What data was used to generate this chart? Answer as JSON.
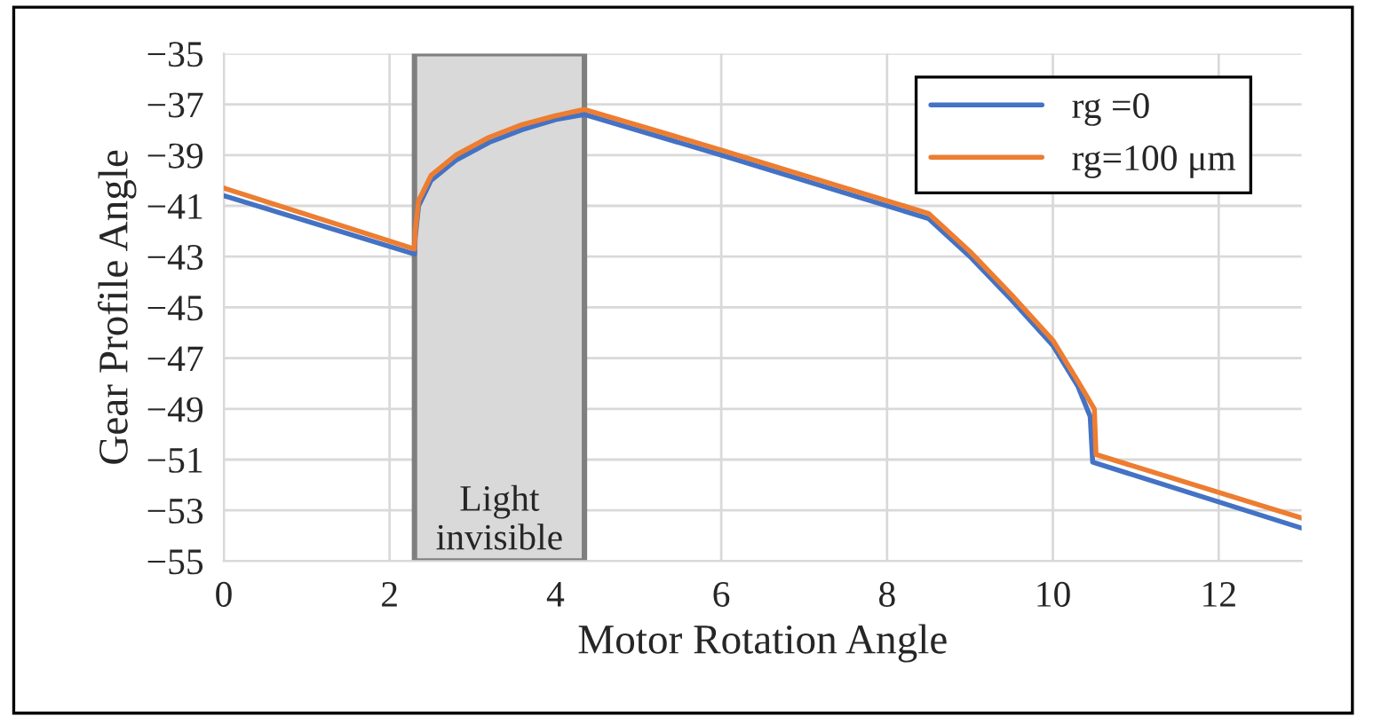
{
  "chart_data": {
    "type": "line",
    "xlabel": "Motor Rotation Angle",
    "ylabel": "Gear Profile Angle",
    "xlim": [
      0,
      13
    ],
    "xticks": [
      0,
      2,
      4,
      6,
      8,
      10,
      12
    ],
    "ylim": [
      -55,
      -35
    ],
    "yticks": [
      -35,
      -37,
      -39,
      -41,
      -43,
      -45,
      -47,
      -49,
      -51,
      -53,
      -55
    ],
    "grid": true,
    "legend": "top right",
    "marker": "none",
    "line_style": "solid",
    "bands": [
      {
        "axis": "x",
        "from": 2.3,
        "to": 4.35,
        "label": "Light\ninvisible",
        "color": "#d9d9d9"
      }
    ],
    "series": [
      {
        "name": "rg =0",
        "color": "#4472c4",
        "x": [
          0,
          2.3,
          2.31,
          2.35,
          2.5,
          2.8,
          3.2,
          3.6,
          4.0,
          4.35,
          6,
          8.5,
          9.0,
          9.5,
          10,
          10.3,
          10.45,
          10.48,
          13
        ],
        "values": [
          -40.6,
          -42.9,
          -42.2,
          -41.0,
          -40.0,
          -39.2,
          -38.5,
          -38.0,
          -37.6,
          -37.4,
          -39.0,
          -41.5,
          -43.0,
          -44.7,
          -46.5,
          -48.1,
          -49.3,
          -51.1,
          -53.7
        ]
      },
      {
        "name": "rg=100 μm",
        "color": "#ed7d31",
        "x": [
          0,
          2.3,
          2.31,
          2.35,
          2.5,
          2.8,
          3.2,
          3.6,
          4.0,
          4.35,
          6,
          8.5,
          9.0,
          9.5,
          10,
          10.3,
          10.5,
          10.52,
          13
        ],
        "values": [
          -40.3,
          -42.7,
          -42.0,
          -40.8,
          -39.8,
          -39.0,
          -38.3,
          -37.8,
          -37.45,
          -37.2,
          -38.8,
          -41.3,
          -42.8,
          -44.5,
          -46.3,
          -47.9,
          -49.0,
          -50.8,
          -53.3
        ]
      }
    ]
  }
}
